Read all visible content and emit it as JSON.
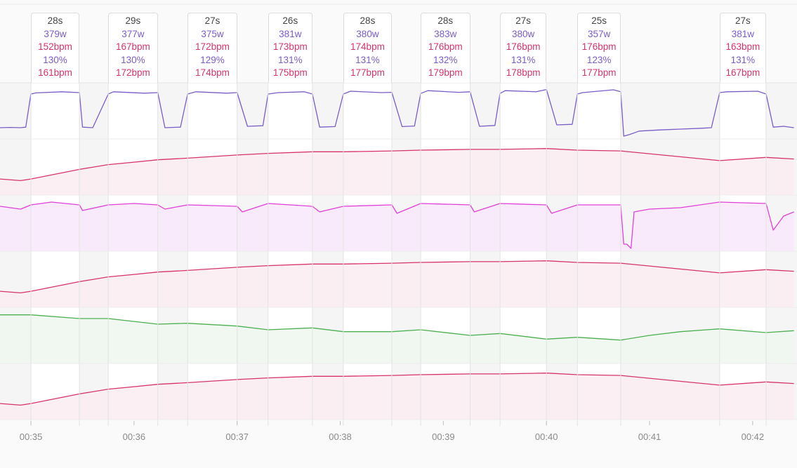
{
  "chart_data": {
    "type": "line",
    "x_axis": {
      "unit": "time (mm:ss)",
      "range": [
        "00:34:42",
        "00:42:25"
      ],
      "ticks": [
        "00:35",
        "00:36",
        "00:37",
        "00:38",
        "00:39",
        "00:40",
        "00:41",
        "00:42"
      ]
    },
    "intervals": [
      {
        "start": 35.0,
        "end": 35.47,
        "duration": "28s",
        "power": "379w",
        "hr_avg": "152bpm",
        "pct": "130%",
        "hr_max": "161bpm"
      },
      {
        "start": 35.75,
        "end": 36.23,
        "duration": "29s",
        "power": "377w",
        "hr_avg": "167bpm",
        "pct": "130%",
        "hr_max": "172bpm"
      },
      {
        "start": 36.52,
        "end": 37.0,
        "duration": "27s",
        "power": "375w",
        "hr_avg": "172bpm",
        "pct": "129%",
        "hr_max": "174bpm"
      },
      {
        "start": 37.3,
        "end": 37.73,
        "duration": "26s",
        "power": "381w",
        "hr_avg": "173bpm",
        "pct": "131%",
        "hr_max": "175bpm"
      },
      {
        "start": 38.03,
        "end": 38.5,
        "duration": "28s",
        "power": "380w",
        "hr_avg": "174bpm",
        "pct": "131%",
        "hr_max": "177bpm"
      },
      {
        "start": 38.78,
        "end": 39.26,
        "duration": "28s",
        "power": "383w",
        "hr_avg": "176bpm",
        "pct": "132%",
        "hr_max": "179bpm"
      },
      {
        "start": 39.55,
        "end": 40.0,
        "duration": "27s",
        "power": "380w",
        "hr_avg": "176bpm",
        "pct": "131%",
        "hr_max": "178bpm"
      },
      {
        "start": 40.3,
        "end": 40.72,
        "duration": "25s",
        "power": "357w",
        "hr_avg": "176bpm",
        "pct": "123%",
        "hr_max": "177bpm"
      },
      {
        "start": 41.68,
        "end": 42.13,
        "duration": "27s",
        "power": "381w",
        "hr_avg": "163bpm",
        "pct": "131%",
        "hr_max": "167bpm"
      }
    ],
    "series": [
      {
        "kind": "power",
        "color": "#7a5cc7",
        "fill": "#ffffff",
        "x": [
          34.7,
          34.8,
          34.9,
          34.95,
          35.0,
          35.05,
          35.3,
          35.47,
          35.5,
          35.6,
          35.75,
          35.8,
          36.1,
          36.23,
          36.3,
          36.45,
          36.52,
          36.6,
          36.9,
          37.0,
          37.1,
          37.25,
          37.3,
          37.4,
          37.65,
          37.73,
          37.8,
          37.95,
          38.03,
          38.1,
          38.4,
          38.5,
          38.6,
          38.72,
          38.78,
          38.85,
          39.15,
          39.26,
          39.35,
          39.5,
          39.55,
          39.6,
          39.9,
          40.0,
          40.1,
          40.25,
          40.3,
          40.35,
          40.65,
          40.72,
          40.75,
          40.8,
          40.9,
          41.1,
          41.3,
          41.5,
          41.6,
          41.68,
          41.75,
          42.05,
          42.13,
          42.2,
          42.3,
          42.4
        ],
        "y": [
          40,
          41,
          40,
          42,
          160,
          164,
          168,
          165,
          42,
          40,
          160,
          168,
          163,
          165,
          40,
          42,
          160,
          168,
          163,
          165,
          45,
          47,
          160,
          165,
          168,
          160,
          42,
          44,
          160,
          170,
          165,
          166,
          44,
          46,
          162,
          172,
          166,
          168,
          45,
          48,
          162,
          172,
          168,
          176,
          50,
          52,
          160,
          165,
          175,
          168,
          10,
          15,
          28,
          32,
          35,
          38,
          40,
          165,
          168,
          170,
          160,
          42,
          45,
          40
        ]
      },
      {
        "kind": "heart-rate",
        "color": "#d6336c",
        "fill": "#fcecf1",
        "x": [
          34.7,
          34.9,
          35.0,
          35.47,
          35.75,
          36.0,
          36.23,
          36.52,
          37.0,
          37.3,
          37.73,
          38.03,
          38.5,
          38.78,
          39.26,
          39.55,
          40.0,
          40.3,
          40.72,
          41.68,
          42.13,
          42.4
        ],
        "y": [
          140,
          138,
          140,
          152,
          158,
          161,
          164,
          166,
          170,
          172,
          174,
          174,
          175,
          176,
          177,
          177,
          178,
          176,
          175,
          163,
          167,
          165
        ]
      },
      {
        "kind": "cadence",
        "color": "#e040d8",
        "fill": "#f9e8fb",
        "x": [
          34.7,
          34.9,
          35.0,
          35.2,
          35.47,
          35.5,
          35.75,
          36.0,
          36.23,
          36.3,
          36.52,
          37.0,
          37.05,
          37.3,
          37.73,
          37.8,
          38.03,
          38.5,
          38.55,
          38.78,
          39.26,
          39.3,
          39.55,
          40.0,
          40.05,
          40.3,
          40.72,
          40.75,
          40.78,
          40.82,
          40.85,
          41.0,
          41.3,
          41.68,
          42.13,
          42.2,
          42.3,
          42.4
        ],
        "y": [
          92,
          90,
          93,
          95,
          93,
          89,
          93,
          94,
          93,
          90,
          93,
          92,
          88,
          94,
          92,
          88,
          92,
          93,
          87,
          94,
          93,
          88,
          94,
          93,
          87,
          93,
          93,
          65,
          65,
          62,
          88,
          90,
          91,
          95,
          94,
          75,
          85,
          88
        ]
      },
      {
        "kind": "heart-rate-smoothed",
        "color": "#d6336c",
        "fill": "#fcecf1",
        "x": [
          34.7,
          34.9,
          35.0,
          35.47,
          35.75,
          36.0,
          36.23,
          36.52,
          37.0,
          37.3,
          37.73,
          38.03,
          38.5,
          38.78,
          39.26,
          39.55,
          40.0,
          40.3,
          40.72,
          41.68,
          42.13,
          42.4
        ],
        "y": [
          140,
          138,
          140,
          152,
          158,
          161,
          164,
          166,
          170,
          172,
          174,
          174,
          175,
          176,
          177,
          177,
          178,
          176,
          175,
          163,
          167,
          165
        ]
      },
      {
        "kind": "speed",
        "color": "#4caf50",
        "fill": "#eef7ee",
        "x": [
          34.7,
          35.0,
          35.47,
          35.75,
          36.23,
          36.52,
          37.0,
          37.3,
          37.73,
          38.03,
          38.5,
          38.78,
          39.26,
          39.55,
          40.0,
          40.3,
          40.72,
          41.0,
          41.3,
          41.68,
          42.13,
          42.4
        ],
        "y": [
          72,
          72,
          68,
          68,
          62,
          63,
          60,
          56,
          58,
          54,
          54,
          56,
          50,
          52,
          46,
          48,
          45,
          50,
          54,
          57,
          53,
          55
        ]
      },
      {
        "kind": "heart-rate-secondary",
        "color": "#d6336c",
        "fill": "#fcecf1",
        "x": [
          34.7,
          34.9,
          35.0,
          35.47,
          35.75,
          36.0,
          36.23,
          36.52,
          37.0,
          37.3,
          37.73,
          38.03,
          38.5,
          38.78,
          39.26,
          39.55,
          40.0,
          40.3,
          40.72,
          41.68,
          42.13,
          42.4
        ],
        "y": [
          140,
          138,
          140,
          152,
          158,
          161,
          164,
          166,
          170,
          172,
          174,
          174,
          175,
          176,
          177,
          177,
          178,
          176,
          175,
          163,
          167,
          165
        ]
      }
    ],
    "grid": true
  }
}
